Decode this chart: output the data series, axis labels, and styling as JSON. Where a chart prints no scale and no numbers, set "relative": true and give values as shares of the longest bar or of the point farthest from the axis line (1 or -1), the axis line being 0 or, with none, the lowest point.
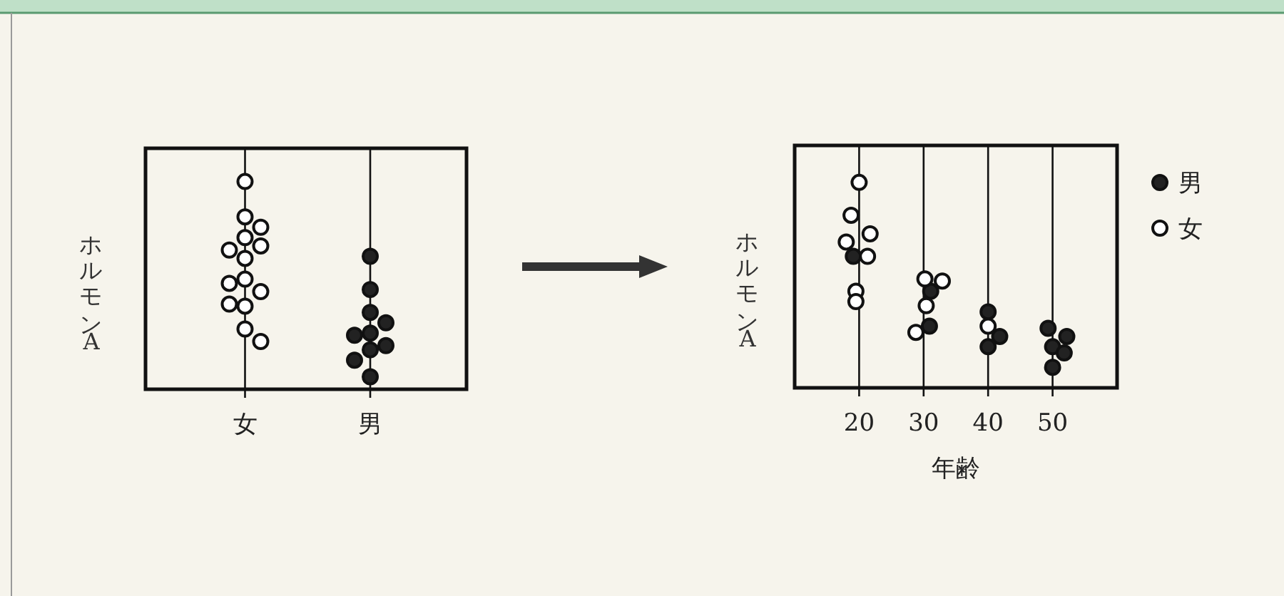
{
  "chart_data": [
    {
      "type": "scatter",
      "categories": [
        "女",
        "男"
      ],
      "ylabel": "ホルモンA",
      "relative": true,
      "grid": "x",
      "legend": false,
      "marker": "circle",
      "series": [
        {
          "color": "#ffffff",
          "x": [
            "女",
            "女",
            "女",
            "女",
            "女",
            "女",
            "女",
            "女",
            "女",
            "女",
            "女",
            "女",
            "女",
            "女"
          ],
          "values": [
            1.0,
            0.83,
            0.78,
            0.73,
            0.69,
            0.63,
            0.53,
            0.47,
            0.4,
            0.29,
            0.23,
            0.67,
            0.51,
            0.41
          ]
        },
        {
          "color": "#222222",
          "x": [
            "男",
            "男",
            "男",
            "男",
            "男",
            "男",
            "男",
            "男",
            "男",
            "男"
          ],
          "values": [
            0.64,
            0.48,
            0.37,
            0.32,
            0.27,
            0.26,
            0.21,
            0.19,
            0.14,
            0.06
          ]
        }
      ]
    },
    {
      "type": "scatter",
      "xlabel": "年齢",
      "ylabel": "ホルモンA",
      "xlim": [
        10,
        60
      ],
      "xticks": [
        20,
        30,
        40,
        50
      ],
      "relative": true,
      "grid": "x",
      "legend": "right",
      "marker": "circle",
      "series": [
        {
          "name": "男",
          "color": "#222222",
          "x": [
            19.1,
            31.1,
            30.9,
            40,
            41.8,
            40,
            49.3,
            52.2,
            50,
            51.8,
            50
          ],
          "values": [
            0.64,
            0.47,
            0.3,
            0.37,
            0.25,
            0.2,
            0.29,
            0.25,
            0.2,
            0.17,
            0.1
          ]
        },
        {
          "name": "女",
          "color": "#ffffff",
          "x": [
            20,
            18.75,
            21.7,
            18.0,
            21.3,
            19.5,
            19.5,
            30.2,
            32.9,
            30.4,
            28.8,
            40
          ],
          "values": [
            1.0,
            0.84,
            0.75,
            0.71,
            0.64,
            0.47,
            0.42,
            0.53,
            0.52,
            0.4,
            0.27,
            0.3
          ]
        }
      ]
    }
  ]
}
